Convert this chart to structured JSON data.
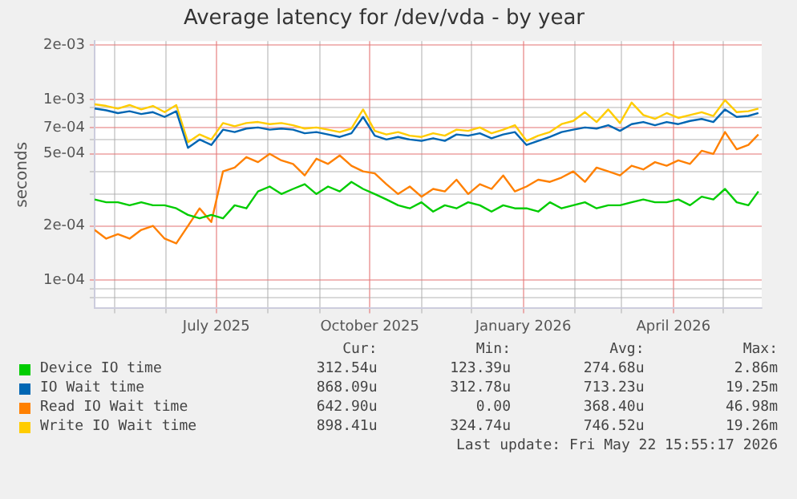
{
  "chart_data": {
    "type": "line",
    "title": "Average latency for /dev/vda - by year",
    "ylabel": "seconds",
    "x": [
      "2025-04-19",
      "2025-04-26",
      "2025-05-03",
      "2025-05-10",
      "2025-05-17",
      "2025-05-24",
      "2025-05-31",
      "2025-06-07",
      "2025-06-14",
      "2025-06-21",
      "2025-06-28",
      "2025-07-05",
      "2025-07-12",
      "2025-07-19",
      "2025-07-26",
      "2025-08-02",
      "2025-08-09",
      "2025-08-16",
      "2025-08-23",
      "2025-08-30",
      "2025-09-06",
      "2025-09-13",
      "2025-09-20",
      "2025-09-27",
      "2025-10-04",
      "2025-10-11",
      "2025-10-18",
      "2025-10-25",
      "2025-11-01",
      "2025-11-08",
      "2025-11-15",
      "2025-11-22",
      "2025-11-29",
      "2025-12-06",
      "2025-12-13",
      "2025-12-20",
      "2025-12-27",
      "2026-01-03",
      "2026-01-10",
      "2026-01-17",
      "2026-01-24",
      "2026-01-31",
      "2026-02-07",
      "2026-02-14",
      "2026-02-21",
      "2026-02-28",
      "2026-03-07",
      "2026-03-14",
      "2026-03-21",
      "2026-03-28",
      "2026-04-04",
      "2026-04-11",
      "2026-04-18",
      "2026-04-25",
      "2026-05-02",
      "2026-05-09",
      "2026-05-16",
      "2026-05-22"
    ],
    "series": [
      {
        "name": "Device IO time",
        "color": "#00cc00",
        "values": [
          0.00028,
          0.00027,
          0.00027,
          0.00026,
          0.00027,
          0.00026,
          0.00026,
          0.00025,
          0.00023,
          0.00022,
          0.00023,
          0.00022,
          0.00026,
          0.00025,
          0.00031,
          0.00033,
          0.0003,
          0.00032,
          0.00034,
          0.0003,
          0.00033,
          0.00031,
          0.00035,
          0.00032,
          0.0003,
          0.00028,
          0.00026,
          0.00025,
          0.00027,
          0.00024,
          0.00026,
          0.00025,
          0.00027,
          0.00026,
          0.00024,
          0.00026,
          0.00025,
          0.00025,
          0.00024,
          0.00027,
          0.00025,
          0.00026,
          0.00027,
          0.00025,
          0.00026,
          0.00026,
          0.00027,
          0.00028,
          0.00027,
          0.00027,
          0.00028,
          0.00026,
          0.00029,
          0.00028,
          0.00032,
          0.00027,
          0.00026,
          0.00031
        ]
      },
      {
        "name": "IO Wait time",
        "color": "#0066b3",
        "values": [
          0.00089,
          0.00087,
          0.00084,
          0.00086,
          0.00083,
          0.00085,
          0.0008,
          0.00086,
          0.00054,
          0.0006,
          0.00056,
          0.00068,
          0.00066,
          0.00069,
          0.0007,
          0.00068,
          0.00069,
          0.00068,
          0.00065,
          0.00066,
          0.00064,
          0.00062,
          0.00065,
          0.0008,
          0.00063,
          0.0006,
          0.00062,
          0.0006,
          0.00059,
          0.00061,
          0.00059,
          0.00064,
          0.00063,
          0.00065,
          0.00061,
          0.00064,
          0.00066,
          0.00056,
          0.00059,
          0.00062,
          0.00066,
          0.00068,
          0.0007,
          0.00069,
          0.00072,
          0.00067,
          0.00073,
          0.00075,
          0.00072,
          0.00075,
          0.00073,
          0.00076,
          0.00078,
          0.00075,
          0.00088,
          0.0008,
          0.00081,
          0.00084
        ]
      },
      {
        "name": "Read IO Wait time",
        "color": "#ff8000",
        "values": [
          0.00019,
          0.00017,
          0.00018,
          0.00017,
          0.00019,
          0.0002,
          0.00017,
          0.00016,
          0.0002,
          0.00025,
          0.00021,
          0.0004,
          0.00042,
          0.00048,
          0.00045,
          0.0005,
          0.00046,
          0.00044,
          0.00038,
          0.00047,
          0.00044,
          0.00049,
          0.00043,
          0.0004,
          0.00039,
          0.00034,
          0.0003,
          0.00033,
          0.00029,
          0.00032,
          0.00031,
          0.00036,
          0.0003,
          0.00034,
          0.00032,
          0.00038,
          0.00031,
          0.00033,
          0.00036,
          0.00035,
          0.00037,
          0.0004,
          0.00035,
          0.00042,
          0.0004,
          0.00038,
          0.00043,
          0.00041,
          0.00045,
          0.00043,
          0.00046,
          0.00044,
          0.00052,
          0.0005,
          0.00066,
          0.00053,
          0.00056,
          0.00064
        ]
      },
      {
        "name": "Write IO Wait time",
        "color": "#ffcc00",
        "values": [
          0.00094,
          0.00092,
          0.00089,
          0.00093,
          0.00088,
          0.00092,
          0.00085,
          0.00093,
          0.00058,
          0.00064,
          0.0006,
          0.00074,
          0.00071,
          0.00074,
          0.00075,
          0.00073,
          0.00074,
          0.00072,
          0.00069,
          0.0007,
          0.00068,
          0.00066,
          0.00069,
          0.00088,
          0.00067,
          0.00064,
          0.00066,
          0.00063,
          0.00062,
          0.00065,
          0.00063,
          0.00068,
          0.00067,
          0.0007,
          0.00065,
          0.00068,
          0.00072,
          0.00059,
          0.00063,
          0.00066,
          0.00073,
          0.00076,
          0.00085,
          0.00075,
          0.00088,
          0.00074,
          0.00096,
          0.00082,
          0.00078,
          0.00084,
          0.00079,
          0.00082,
          0.00085,
          0.00081,
          0.00099,
          0.00085,
          0.00086,
          0.00089
        ]
      }
    ],
    "xlim": [
      "2025-04-19",
      "2026-05-24"
    ],
    "xticks": [
      {
        "value": "2025-05-01",
        "label": null
      },
      {
        "value": "2025-06-01",
        "label": null
      },
      {
        "value": "2025-07-01",
        "label": "July 2025"
      },
      {
        "value": "2025-08-01",
        "label": null
      },
      {
        "value": "2025-09-01",
        "label": null
      },
      {
        "value": "2025-10-01",
        "label": "October 2025"
      },
      {
        "value": "2025-11-01",
        "label": null
      },
      {
        "value": "2025-12-01",
        "label": null
      },
      {
        "value": "2026-01-01",
        "label": "January 2026"
      },
      {
        "value": "2026-02-01",
        "label": null
      },
      {
        "value": "2026-03-01",
        "label": null
      },
      {
        "value": "2026-04-01",
        "label": "April 2026"
      },
      {
        "value": "2026-05-01",
        "label": null
      }
    ],
    "ylim": [
      7.4e-05,
      0.0021
    ],
    "yticks": [
      {
        "value": 8e-05,
        "label": null
      },
      {
        "value": 9e-05,
        "label": null
      },
      {
        "value": 0.0001,
        "label": "1e-04"
      },
      {
        "value": 0.0002,
        "label": "2e-04"
      },
      {
        "value": 0.0003,
        "label": null
      },
      {
        "value": 0.0004,
        "label": null
      },
      {
        "value": 0.0005,
        "label": "5e-04"
      },
      {
        "value": 0.0006,
        "label": null
      },
      {
        "value": 0.0007,
        "label": "7e-04"
      },
      {
        "value": 0.0008,
        "label": null
      },
      {
        "value": 0.0009,
        "label": null
      },
      {
        "value": 0.001,
        "label": "1e-03"
      },
      {
        "value": 0.002,
        "label": "2e-03"
      }
    ],
    "log": "y",
    "grid": true,
    "legend": "bottom",
    "marker": "none",
    "line_style": "solid",
    "annotations": [
      "Cur:",
      "Min:",
      "Avg:",
      "Max:",
      "312.54u",
      "123.39u",
      "274.68u",
      "2.86m",
      "868.09u",
      "312.78u",
      "713.23u",
      "19.25m",
      "642.90u",
      "0.00",
      "368.40u",
      "46.98m",
      "898.41u",
      "324.74u",
      "746.52u",
      "19.26m",
      "Last update: Fri May 22 15:55:17 2026"
    ]
  }
}
